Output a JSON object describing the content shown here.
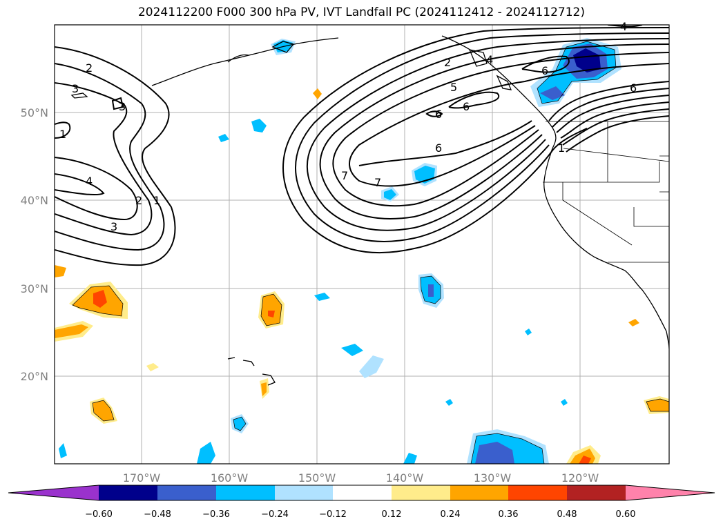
{
  "title": "2024112200 F000 300 hPa PV, IVT Landfall PC (2024112412 - 2024112712)",
  "lat_labels": [
    "50°N",
    "40°N",
    "30°N",
    "20°N"
  ],
  "lon_labels": [
    "170°W",
    "160°W",
    "150°W",
    "140°W",
    "130°W",
    "120°W"
  ],
  "contour_labels": [
    {
      "text": "2"
    },
    {
      "text": "3"
    },
    {
      "text": "3"
    },
    {
      "text": "1"
    },
    {
      "text": "4"
    },
    {
      "text": "2"
    },
    {
      "text": "1"
    },
    {
      "text": "3"
    },
    {
      "text": "7"
    },
    {
      "text": "7"
    },
    {
      "text": "6"
    },
    {
      "text": "6"
    },
    {
      "text": "6"
    },
    {
      "text": "5"
    },
    {
      "text": "2"
    },
    {
      "text": "4"
    },
    {
      "text": "6"
    },
    {
      "text": "6"
    },
    {
      "text": "1"
    },
    {
      "text": "4"
    }
  ],
  "colorbar": {
    "colors": [
      "#9a32cd",
      "#00008b",
      "#3a5fcd",
      "#00bfff",
      "#b0e2ff",
      "#ffffff",
      "#ffec8b",
      "#ffa500",
      "#ff4500",
      "#b22222",
      "#ff82ab"
    ],
    "ticks": [
      "−0.60",
      "−0.48",
      "−0.36",
      "−0.24",
      "−0.12",
      "0.12",
      "0.24",
      "0.36",
      "0.48",
      "0.60"
    ]
  }
}
